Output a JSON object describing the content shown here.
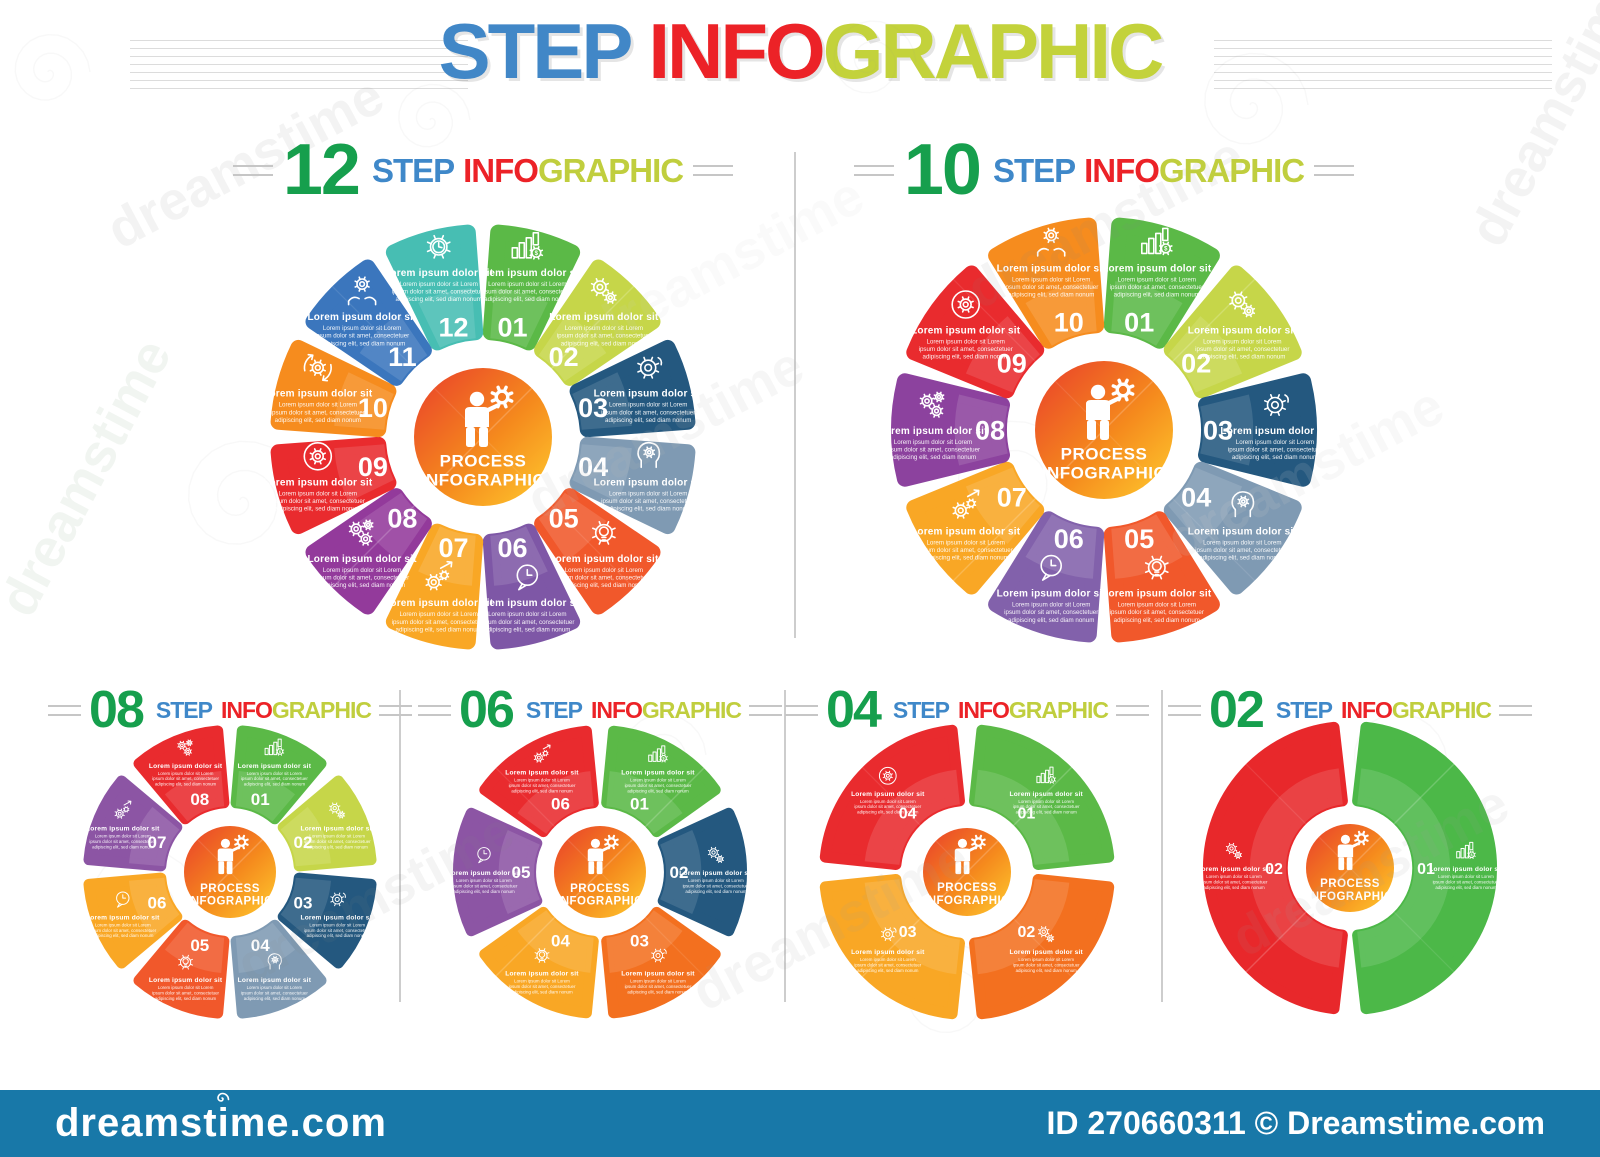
{
  "page": {
    "title": {
      "step": "STEP",
      "info": "INFO",
      "graphic": "GRAPHIC"
    },
    "watermark_text": "dreamstime",
    "watermark_bar": {
      "left": "dreamstime.com",
      "right": "ID 270660311 © Dreamstime.com"
    }
  },
  "heading_words": {
    "step": "STEP",
    "info": "INFO",
    "graphic": "GRAPHIC"
  },
  "petal_text": {
    "title": "Lorem ipsum dolor sit",
    "body_lines": [
      "Lorem ipsum dolor sit Lorem",
      "ipsum dolor sit amet, consectetuer",
      "adipiscing elit, sed diam nonum"
    ]
  },
  "center_label": {
    "line1": "PROCESS",
    "line2": "INFOGRAPHIC"
  },
  "colors": {
    "title_step": "#4187C7",
    "title_info": "#EC2227",
    "title_graphic": "#C3D23B",
    "heading_number": "#169F4D",
    "heading_step": "#3F88C9",
    "heading_info": "#EC2227",
    "heading_graphic": "#C0CE3E",
    "divider": "#9B9B9B",
    "watermark_bar_bg": "#1878A8",
    "center_gradient": [
      "#E93E2B",
      "#F58A1D",
      "#FFCB2E"
    ]
  },
  "infographics": [
    {
      "id": "steps-12",
      "number": "12",
      "segments": [
        {
          "num": "01",
          "color": "#5BB947",
          "icon": "bar-chart-dollar-icon"
        },
        {
          "num": "02",
          "color": "#C6D649",
          "icon": "gears-icon"
        },
        {
          "num": "03",
          "color": "#24587F",
          "icon": "gear-icon"
        },
        {
          "num": "04",
          "color": "#7F9AB3",
          "icon": "head-gears-icon"
        },
        {
          "num": "05",
          "color": "#F1582B",
          "icon": "gear-bulb-icon"
        },
        {
          "num": "06",
          "color": "#7E57A6",
          "icon": "chat-clock-icon"
        },
        {
          "num": "07",
          "color": "#F9A725",
          "icon": "gear-arrow-icon"
        },
        {
          "num": "08",
          "color": "#933A9B",
          "icon": "gears-cluster-icon"
        },
        {
          "num": "09",
          "color": "#E92B2E",
          "icon": "gear-circle-icon"
        },
        {
          "num": "10",
          "color": "#F68C1E",
          "icon": "gear-refresh-icon"
        },
        {
          "num": "11",
          "color": "#3B76BD",
          "icon": "hands-gear-icon"
        },
        {
          "num": "12",
          "color": "#47BEB3",
          "icon": "gear-clock-icon"
        }
      ]
    },
    {
      "id": "steps-10",
      "number": "10",
      "segments": [
        {
          "num": "01",
          "color": "#5BB947",
          "icon": "bar-chart-dollar-icon"
        },
        {
          "num": "02",
          "color": "#C6D649",
          "icon": "gears-icon"
        },
        {
          "num": "03",
          "color": "#24587F",
          "icon": "gear-icon"
        },
        {
          "num": "04",
          "color": "#7F9AB3",
          "icon": "head-gears-icon"
        },
        {
          "num": "05",
          "color": "#F1582B",
          "icon": "gear-bulb-icon"
        },
        {
          "num": "06",
          "color": "#8261AB",
          "icon": "chat-clock-icon"
        },
        {
          "num": "07",
          "color": "#F9A725",
          "icon": "gear-arrow-icon"
        },
        {
          "num": "08",
          "color": "#8C429E",
          "icon": "gears-cluster-icon"
        },
        {
          "num": "09",
          "color": "#E92B2E",
          "icon": "gear-circle-icon"
        },
        {
          "num": "10",
          "color": "#F68C1E",
          "icon": "hands-gear-icon"
        }
      ]
    },
    {
      "id": "steps-08",
      "number": "08",
      "segments": [
        {
          "num": "01",
          "color": "#5BB947",
          "icon": "bar-chart-dollar-icon"
        },
        {
          "num": "02",
          "color": "#C6D649",
          "icon": "gears-icon"
        },
        {
          "num": "03",
          "color": "#24587F",
          "icon": "gear-icon"
        },
        {
          "num": "04",
          "color": "#7F9AB3",
          "icon": "head-gears-icon"
        },
        {
          "num": "05",
          "color": "#F1582B",
          "icon": "gear-bulb-icon"
        },
        {
          "num": "06",
          "color": "#F9A725",
          "icon": "chat-clock-icon"
        },
        {
          "num": "07",
          "color": "#8C55A4",
          "icon": "gear-arrow-icon"
        },
        {
          "num": "08",
          "color": "#E92B2E",
          "icon": "gears-cluster-icon"
        }
      ]
    },
    {
      "id": "steps-06",
      "number": "06",
      "segments": [
        {
          "num": "01",
          "color": "#5BB947",
          "icon": "bar-chart-dollar-icon"
        },
        {
          "num": "02",
          "color": "#24587F",
          "icon": "gears-icon"
        },
        {
          "num": "03",
          "color": "#F3701F",
          "icon": "gear-icon"
        },
        {
          "num": "04",
          "color": "#F9A725",
          "icon": "gear-bulb-icon"
        },
        {
          "num": "05",
          "color": "#8C55A4",
          "icon": "chat-clock-icon"
        },
        {
          "num": "06",
          "color": "#E92B2E",
          "icon": "gear-arrow-icon"
        }
      ]
    },
    {
      "id": "steps-04",
      "number": "04",
      "segments": [
        {
          "num": "01",
          "color": "#5BB947",
          "icon": "bar-chart-dollar-icon"
        },
        {
          "num": "02",
          "color": "#F3701F",
          "icon": "gears-icon"
        },
        {
          "num": "03",
          "color": "#F9A725",
          "icon": "gear-icon"
        },
        {
          "num": "04",
          "color": "#E92B2E",
          "icon": "gear-circle-icon"
        }
      ]
    },
    {
      "id": "steps-02",
      "number": "02",
      "segments": [
        {
          "num": "01",
          "color": "#4CB848",
          "icon": "bar-chart-dollar-icon"
        },
        {
          "num": "02",
          "color": "#E8282B",
          "icon": "gears-icon"
        }
      ]
    }
  ]
}
